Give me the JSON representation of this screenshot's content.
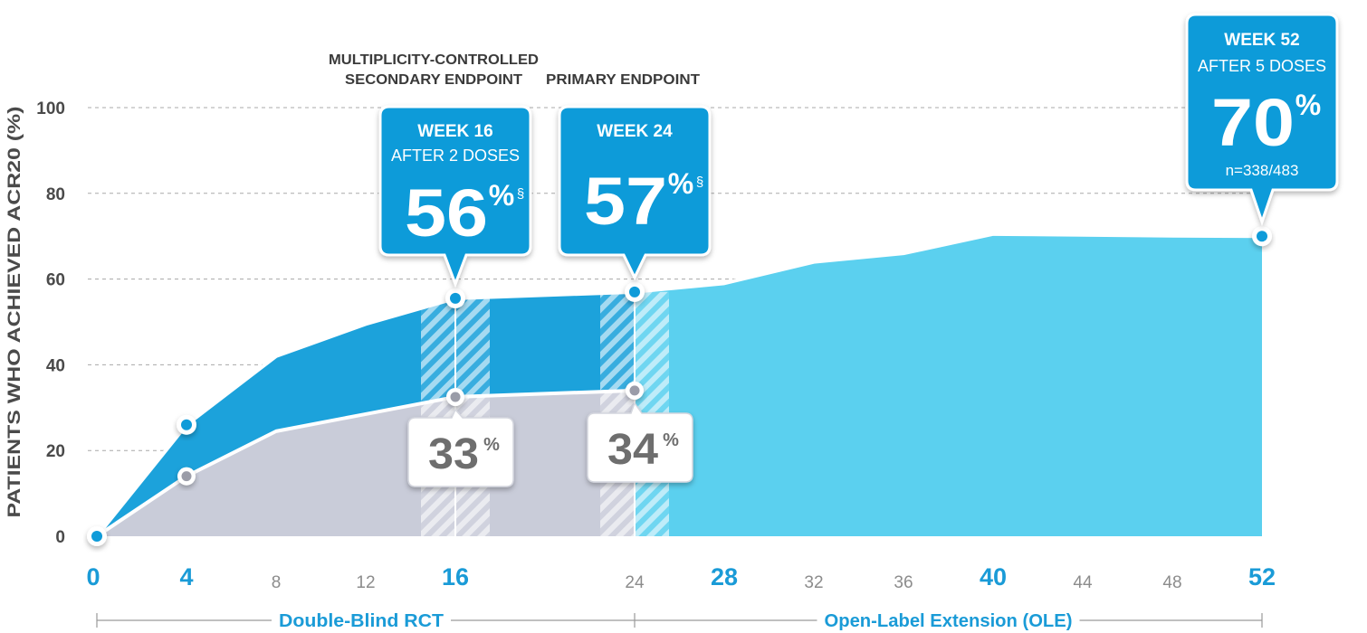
{
  "chart_data": {
    "type": "area",
    "ylabel": "PATIENTS WHO ACHIEVED ACR20 (%)",
    "ylim": [
      0,
      100
    ],
    "yticks": [
      "0",
      "20",
      "40",
      "60",
      "80",
      "100"
    ],
    "xlim": [
      0,
      52
    ],
    "xticks": [
      {
        "value": 0,
        "label": "0",
        "major": true
      },
      {
        "value": 4,
        "label": "4",
        "major": true
      },
      {
        "value": 8,
        "label": "8",
        "major": false
      },
      {
        "value": 12,
        "label": "12",
        "major": false
      },
      {
        "value": 16,
        "label": "16",
        "major": true
      },
      {
        "value": 24,
        "label": "24",
        "major": false
      },
      {
        "value": 28,
        "label": "28",
        "major": true
      },
      {
        "value": 32,
        "label": "32",
        "major": false
      },
      {
        "value": 36,
        "label": "36",
        "major": false
      },
      {
        "value": 40,
        "label": "40",
        "major": true
      },
      {
        "value": 44,
        "label": "44",
        "major": false
      },
      {
        "value": 48,
        "label": "48",
        "major": false
      },
      {
        "value": 52,
        "label": "52",
        "major": true
      }
    ],
    "grid": "horizontal-dashed",
    "series": [
      {
        "x": [
          0,
          4,
          8,
          12,
          16,
          24,
          28,
          32,
          36,
          40,
          44,
          48,
          52
        ],
        "y": [
          0,
          26,
          42,
          49.5,
          55.5,
          57,
          59,
          64,
          66,
          70.5,
          70.3,
          70.1,
          70
        ],
        "markers": [
          0,
          4,
          16,
          24,
          52
        ]
      },
      {
        "x": [
          0,
          4,
          8,
          12,
          16,
          24
        ],
        "y": [
          0,
          14,
          24.5,
          28.5,
          32.5,
          34
        ],
        "markers": [
          4,
          16,
          24
        ]
      }
    ],
    "colors": {
      "dark_blue": "#1CA2DB",
      "light_blue": "#5BD0EF",
      "callout_blue": "#0E9BD9",
      "placebo_grey": "#C9CCD9",
      "axis_major": "#1A9BD7",
      "axis_minor": "#8C8C8C",
      "text_dark": "#4A4A4A"
    },
    "callouts": [
      {
        "x": 16,
        "y": 55.5,
        "week": "WEEK 16",
        "doses": "AFTER 2 DOSES",
        "value": "56",
        "unit": "%",
        "mark": "§"
      },
      {
        "x": 24,
        "y": 57,
        "week": "WEEK 24",
        "doses": "",
        "value": "57",
        "unit": "%",
        "mark": "§"
      },
      {
        "x": 52,
        "y": 70,
        "week": "WEEK 52",
        "doses": "AFTER 5 DOSES",
        "value": "70",
        "unit": "%",
        "mark": "",
        "n": "n=338/483"
      }
    ],
    "comparator_labels": [
      {
        "x": 16,
        "y": 32.5,
        "value": "33",
        "unit": "%"
      },
      {
        "x": 24,
        "y": 34,
        "value": "34",
        "unit": "%"
      }
    ],
    "endpoint_labels": {
      "secondary_line1": "MULTIPLICITY-CONTROLLED",
      "secondary_line2": "SECONDARY ENDPOINT",
      "primary": "PRIMARY ENDPOINT"
    },
    "phases": [
      {
        "label": "Double-Blind RCT",
        "from": 0,
        "to": 24
      },
      {
        "label": "Open-Label Extension (OLE)",
        "from": 24,
        "to": 52
      }
    ]
  }
}
